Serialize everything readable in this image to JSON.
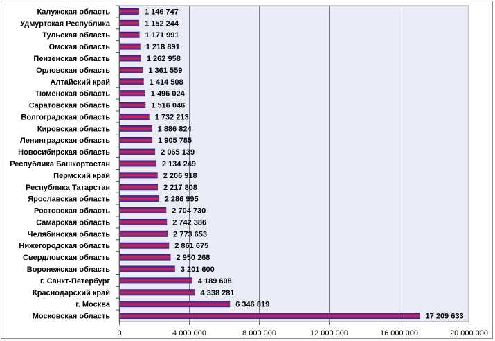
{
  "chart_data": {
    "type": "bar",
    "orientation": "horizontal",
    "title": "",
    "xlabel": "",
    "ylabel": "",
    "xlim": [
      0,
      20000000
    ],
    "x_ticks": [
      0,
      4000000,
      8000000,
      12000000,
      16000000,
      20000000
    ],
    "x_tick_labels": [
      "0",
      "4 000 000",
      "8 000 000",
      "12 000 000",
      "16 000 000",
      "20 000 000"
    ],
    "grid": "vertical",
    "legend": "none",
    "colors": {
      "bar_top": "#1c1f9a",
      "bar_mid": "#d9264f",
      "bar_bottom": "#2a2aa8",
      "plot_bg": "#e9ecf6",
      "grid": "#7a7a7a"
    },
    "categories": [
      "Калужская область",
      "Удмуртская Республика",
      "Тульская область",
      "Омская область",
      "Пензенская область",
      "Орловская область",
      "Алтайский край",
      "Тюменская область",
      "Саратовская область",
      "Волгоградская область",
      "Кировская область",
      "Ленинградская область",
      "Новосибирская область",
      "Республика Башкортостан",
      "Пермский край",
      "Республика Татарстан",
      "Ярославская область",
      "Ростовская область",
      "Самарская область",
      "Челябинская область",
      "Нижегородская область",
      "Свердловская область",
      "Воронежская область",
      "г. Санкт-Петербург",
      "Краснодарский край",
      "г. Москва",
      "Московская область"
    ],
    "values": [
      1146747,
      1152244,
      1171991,
      1218891,
      1262958,
      1361559,
      1414508,
      1496024,
      1516046,
      1732213,
      1886824,
      1905785,
      2065139,
      2134249,
      2206918,
      2217808,
      2286995,
      2704730,
      2742386,
      2773653,
      2861675,
      2950268,
      3201600,
      4189608,
      4338281,
      6346819,
      17209633
    ],
    "value_labels": [
      "1 146 747",
      "1 152 244",
      "1 171 991",
      "1 218 891",
      "1 262 958",
      "1 361 559",
      "1 414 508",
      "1 496 024",
      "1 516 046",
      "1 732 213",
      "1 886 824",
      "1 905 785",
      "2 065 139",
      "2 134 249",
      "2 206 918",
      "2 217 808",
      "2 286 995",
      "2 704 730",
      "2 742 386",
      "2 773 653",
      "2 861 675",
      "2 950 268",
      "3 201 600",
      "4 189 608",
      "4 338 281",
      "6 346 819",
      "17 209 633"
    ]
  }
}
